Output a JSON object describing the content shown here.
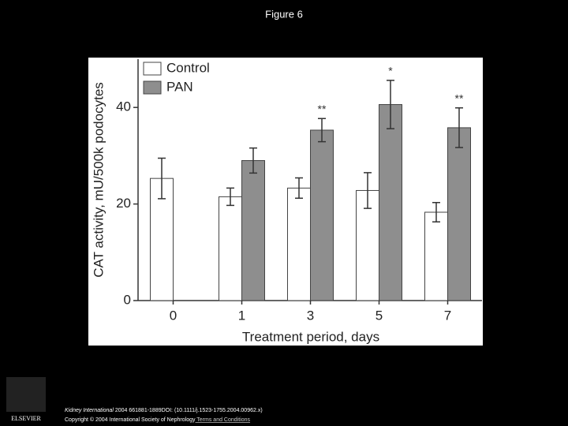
{
  "slide_title": "Figure 6",
  "chart_data": {
    "type": "bar",
    "xlabel": "Treatment period, days",
    "ylabel": "CAT activity, mU/500k podocytes",
    "categories": [
      "0",
      "1",
      "3",
      "5",
      "7"
    ],
    "series": [
      {
        "name": "Control",
        "color": "#ffffff",
        "values": [
          25.3,
          21.5,
          23.3,
          22.8,
          18.3
        ],
        "errors": [
          4.2,
          1.8,
          2.1,
          3.7,
          2.0
        ]
      },
      {
        "name": "PAN",
        "color": "#8e8e8e",
        "values": [
          null,
          29.0,
          35.3,
          40.6,
          35.8
        ],
        "errors": [
          null,
          2.6,
          2.4,
          5.0,
          4.1
        ]
      }
    ],
    "annotations": [
      {
        "text": "**",
        "category": "3"
      },
      {
        "text": "*",
        "category": "5"
      },
      {
        "text": "**",
        "category": "7"
      }
    ],
    "ylim": [
      0,
      50
    ],
    "yticks": [
      0,
      20,
      40
    ],
    "legend": "upper left"
  },
  "footer": {
    "journal": "Kidney International",
    "citation": " 2004 661881-1889DOI: (10.1111/j.1523-1755.2004.00962.x)",
    "copyright": "Copyright © 2004 International Society of Nephrology",
    "terms": " Terms and Conditions",
    "logo": "ELSEVIER"
  }
}
